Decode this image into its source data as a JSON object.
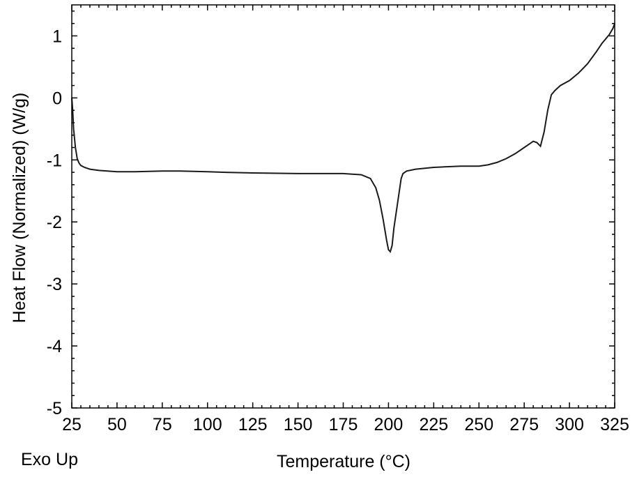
{
  "chart_data": {
    "type": "line",
    "title": "",
    "xlabel": "Temperature (°C)",
    "ylabel": "Heat Flow (Normalized) (W/g)",
    "xlim": [
      25,
      325
    ],
    "ylim": [
      -5,
      1.5
    ],
    "x_ticks": [
      "25",
      "50",
      "75",
      "100",
      "125",
      "150",
      "175",
      "200",
      "225",
      "250",
      "275",
      "300",
      "325"
    ],
    "y_ticks": [
      "1",
      "0",
      "-1",
      "-2",
      "-3",
      "-4",
      "-5"
    ],
    "grid": false,
    "legend": "none",
    "line_color": "#1a1a1a",
    "footer_note": "Exo Up",
    "series": [
      {
        "x": [
          25,
          25.5,
          26,
          27,
          28,
          29,
          30,
          32,
          35,
          40,
          50,
          60,
          75,
          85,
          100,
          110,
          125,
          150,
          175,
          185,
          190,
          193,
          195,
          197,
          199,
          200,
          201,
          202,
          203,
          205,
          207,
          208,
          210,
          215,
          225,
          240,
          250,
          255,
          260,
          265,
          270,
          275,
          278,
          280,
          282,
          284,
          286,
          288,
          290,
          292,
          295,
          300,
          305,
          310,
          315,
          318,
          320,
          322,
          324,
          325
        ],
        "y": [
          0.0,
          -0.2,
          -0.5,
          -0.8,
          -0.98,
          -1.05,
          -1.09,
          -1.12,
          -1.15,
          -1.17,
          -1.19,
          -1.19,
          -1.18,
          -1.18,
          -1.19,
          -1.2,
          -1.21,
          -1.22,
          -1.22,
          -1.24,
          -1.3,
          -1.45,
          -1.65,
          -1.95,
          -2.3,
          -2.45,
          -2.48,
          -2.38,
          -2.1,
          -1.7,
          -1.3,
          -1.22,
          -1.18,
          -1.15,
          -1.12,
          -1.1,
          -1.1,
          -1.08,
          -1.04,
          -0.98,
          -0.9,
          -0.8,
          -0.74,
          -0.7,
          -0.72,
          -0.78,
          -0.55,
          -0.2,
          0.05,
          0.12,
          0.2,
          0.28,
          0.4,
          0.55,
          0.75,
          0.88,
          0.95,
          1.02,
          1.12,
          1.2
        ]
      }
    ]
  }
}
